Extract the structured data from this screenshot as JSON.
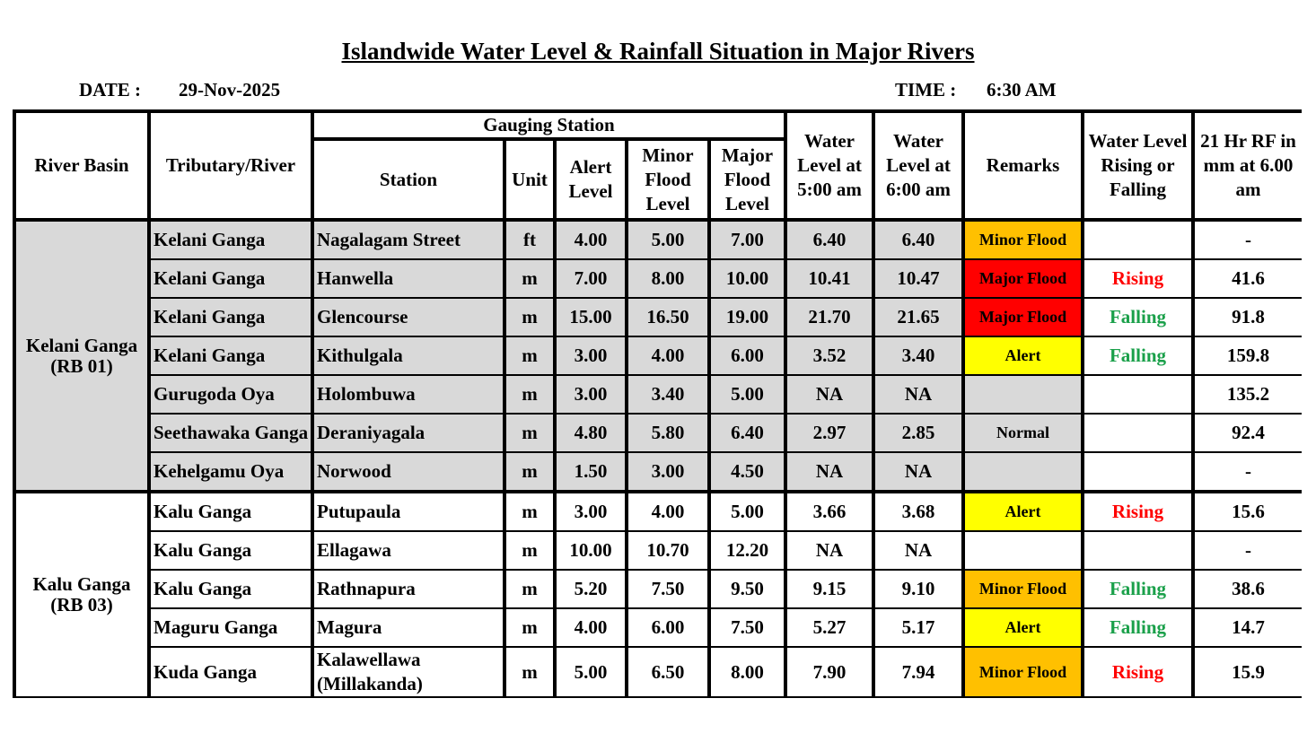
{
  "title": "Islandwide Water Level & Rainfall Situation in Major Rivers",
  "date_label": "DATE :",
  "date": "29-Nov-2025",
  "time_label": "TIME :",
  "time": "6:30 AM",
  "headers": {
    "river_basin": "River Basin",
    "tributary": "Tributary/River",
    "gauging_station": "Gauging Station",
    "station": "Station",
    "unit": "Unit",
    "alert": "Alert Level",
    "minor": "Minor Flood Level",
    "major": "Major Flood Level",
    "wl5": "Water Level at 5:00 am",
    "wl6": "Water Level at 6:00 am",
    "remarks": "Remarks",
    "trend": "Water Level Rising or Falling",
    "rf": "21 Hr RF in mm at 6.00 am"
  },
  "colors": {
    "minor_flood": "#FFC000",
    "major_flood": "#FF0000",
    "alert": "#FFFF00",
    "basin_shade": "#D9D9D9",
    "rf_bar": "#4A84D4",
    "rising": "#FF0000",
    "falling": "#1AA04A"
  },
  "basins": [
    {
      "name": "Kelani Ganga",
      "code": "(RB 01)",
      "shaded": true,
      "rows": [
        {
          "river": "Kelani Ganga",
          "station": "Nagalagam Street",
          "unit": "ft",
          "alert": "4.00",
          "minor": "5.00",
          "major": "7.00",
          "wl5": "6.40",
          "wl6": "6.40",
          "remarks": "Minor Flood",
          "trend": "",
          "rf": "-"
        },
        {
          "river": "Kelani Ganga",
          "station": "Hanwella",
          "unit": "m",
          "alert": "7.00",
          "minor": "8.00",
          "major": "10.00",
          "wl5": "10.41",
          "wl6": "10.47",
          "remarks": "Major Flood",
          "trend": "Rising",
          "rf": "41.6"
        },
        {
          "river": "Kelani Ganga",
          "station": "Glencourse",
          "unit": "m",
          "alert": "15.00",
          "minor": "16.50",
          "major": "19.00",
          "wl5": "21.70",
          "wl6": "21.65",
          "remarks": "Major Flood",
          "trend": "Falling",
          "rf": "91.8"
        },
        {
          "river": "Kelani Ganga",
          "station": "Kithulgala",
          "unit": "m",
          "alert": "3.00",
          "minor": "4.00",
          "major": "6.00",
          "wl5": "3.52",
          "wl6": "3.40",
          "remarks": "Alert",
          "trend": "Falling",
          "rf": "159.8"
        },
        {
          "river": "Gurugoda Oya",
          "station": "Holombuwa",
          "unit": "m",
          "alert": "3.00",
          "minor": "3.40",
          "major": "5.00",
          "wl5": "NA",
          "wl6": "NA",
          "remarks": "",
          "trend": "",
          "rf": "135.2"
        },
        {
          "river": "Seethawaka Ganga",
          "station": "Deraniyagala",
          "unit": "m",
          "alert": "4.80",
          "minor": "5.80",
          "major": "6.40",
          "wl5": "2.97",
          "wl6": "2.85",
          "remarks": "Normal",
          "trend": "",
          "rf": "92.4"
        },
        {
          "river": "Kehelgamu Oya",
          "station": "Norwood",
          "unit": "m",
          "alert": "1.50",
          "minor": "3.00",
          "major": "4.50",
          "wl5": "NA",
          "wl6": "NA",
          "remarks": "",
          "trend": "",
          "rf": "-"
        }
      ]
    },
    {
      "name": "Kalu Ganga",
      "code": "(RB 03)",
      "shaded": false,
      "rows": [
        {
          "river": "Kalu Ganga",
          "station": "Putupaula",
          "unit": "m",
          "alert": "3.00",
          "minor": "4.00",
          "major": "5.00",
          "wl5": "3.66",
          "wl6": "3.68",
          "remarks": "Alert",
          "trend": "Rising",
          "rf": "15.6"
        },
        {
          "river": "Kalu Ganga",
          "station": "Ellagawa",
          "unit": "m",
          "alert": "10.00",
          "minor": "10.70",
          "major": "12.20",
          "wl5": "NA",
          "wl6": "NA",
          "remarks": "",
          "trend": "",
          "rf": "-"
        },
        {
          "river": "Kalu Ganga",
          "station": "Rathnapura",
          "unit": "m",
          "alert": "5.20",
          "minor": "7.50",
          "major": "9.50",
          "wl5": "9.15",
          "wl6": "9.10",
          "remarks": "Minor Flood",
          "trend": "Falling",
          "rf": "38.6"
        },
        {
          "river": "Maguru Ganga",
          "station": "Magura",
          "unit": "m",
          "alert": "4.00",
          "minor": "6.00",
          "major": "7.50",
          "wl5": "5.27",
          "wl6": "5.17",
          "remarks": "Alert",
          "trend": "Falling",
          "rf": "14.7"
        },
        {
          "river": "Kuda Ganga",
          "station": "Kalawellawa (Millakanda)",
          "unit": "m",
          "alert": "5.00",
          "minor": "6.50",
          "major": "8.00",
          "wl5": "7.90",
          "wl6": "7.94",
          "remarks": "Minor Flood",
          "trend": "Rising",
          "rf": "15.9"
        }
      ]
    }
  ]
}
